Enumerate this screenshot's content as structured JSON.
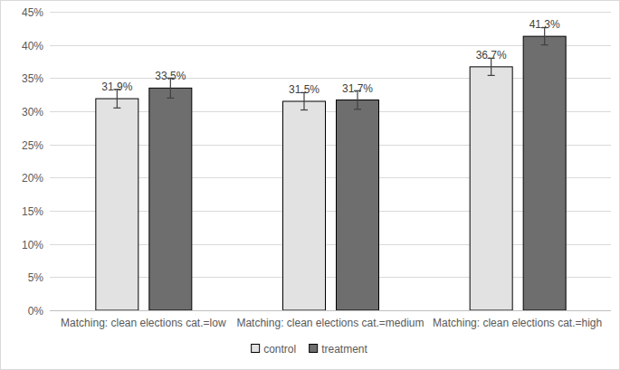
{
  "chart_data": {
    "type": "bar",
    "categories": [
      "Matching: clean elections cat.=low",
      "Matching: clean elections cat.=medium",
      "Matching: clean elections cat.=high"
    ],
    "series": [
      {
        "name": "control",
        "color": "#e2e2e2",
        "values": [
          31.9,
          31.5,
          36.7
        ],
        "value_labels": [
          "31.9%",
          "31.5%",
          "36.7%"
        ],
        "errors": [
          1.4,
          1.3,
          1.3
        ]
      },
      {
        "name": "treatment",
        "color": "#6e6e6e",
        "values": [
          33.5,
          31.7,
          41.3
        ],
        "value_labels": [
          "33.5%",
          "31.7%",
          "41.3%"
        ],
        "errors": [
          1.5,
          1.4,
          1.3
        ]
      }
    ],
    "ylim": [
      0,
      45
    ],
    "yticks": [
      {
        "value": 0,
        "label": "0%"
      },
      {
        "value": 5,
        "label": "5%"
      },
      {
        "value": 10,
        "label": "10%"
      },
      {
        "value": 15,
        "label": "15%"
      },
      {
        "value": 20,
        "label": "20%"
      },
      {
        "value": 25,
        "label": "25%"
      },
      {
        "value": 30,
        "label": "30%"
      },
      {
        "value": 35,
        "label": "35%"
      },
      {
        "value": 40,
        "label": "40%"
      },
      {
        "value": 45,
        "label": "45%"
      }
    ],
    "grid": true,
    "legend": "bottom",
    "data_labels": true
  }
}
